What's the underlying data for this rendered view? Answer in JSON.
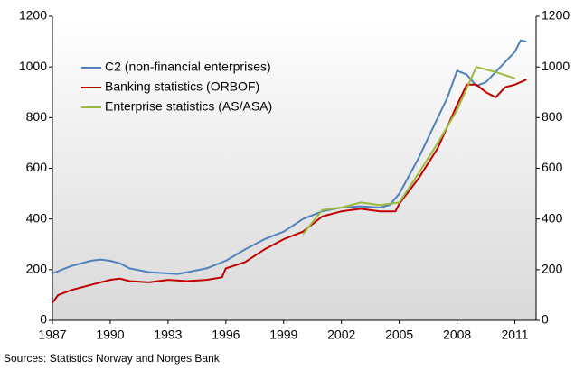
{
  "chart_data": {
    "type": "line",
    "xlim": [
      1987,
      2012.1
    ],
    "xticks": [
      1987,
      1990,
      1993,
      1996,
      1999,
      2002,
      2005,
      2008,
      2011
    ],
    "ylim": [
      0,
      1200
    ],
    "yticks": [
      0,
      200,
      400,
      600,
      800,
      1000,
      1200
    ],
    "y2lim": [
      0,
      1200
    ],
    "y2ticks": [
      0,
      200,
      400,
      600,
      800,
      1000,
      1200
    ],
    "grid": false,
    "legend": "upper left",
    "series": [
      {
        "name": "C2 (non-financial enterprises)",
        "color": "#4f81bd",
        "x": [
          1987,
          1988,
          1989,
          1989.5,
          1990,
          1990.5,
          1991,
          1992,
          1993,
          1993.5,
          1994,
          1995,
          1996,
          1997,
          1998,
          1999,
          2000,
          2001,
          2002,
          2003,
          2004,
          2004.5,
          2005,
          2006,
          2007,
          2007.5,
          2008,
          2008.5,
          2009,
          2009.5,
          2010,
          2010.5,
          2011,
          2011.3,
          2011.6
        ],
        "values": [
          185,
          215,
          235,
          240,
          235,
          225,
          205,
          190,
          185,
          183,
          190,
          205,
          235,
          280,
          320,
          350,
          400,
          430,
          445,
          450,
          445,
          455,
          500,
          640,
          800,
          880,
          985,
          970,
          925,
          940,
          980,
          1020,
          1060,
          1105,
          1100
        ]
      },
      {
        "name": "Banking statistics (ORBOF)",
        "color": "#c00000",
        "x": [
          1987,
          1987.3,
          1988,
          1989,
          1990,
          1990.5,
          1991,
          1992,
          1993,
          1994,
          1995,
          1995.8,
          1996,
          1997,
          1998,
          1999,
          2000,
          2001,
          2002,
          2003,
          2004,
          2004.8,
          2005,
          2006,
          2007,
          2008,
          2008.5,
          2009,
          2009.5,
          2010,
          2010.5,
          2011,
          2011.6
        ],
        "values": [
          70,
          100,
          120,
          140,
          160,
          165,
          155,
          150,
          160,
          155,
          160,
          170,
          205,
          230,
          280,
          320,
          350,
          410,
          430,
          440,
          430,
          430,
          460,
          560,
          680,
          850,
          930,
          930,
          900,
          880,
          920,
          930,
          950
        ]
      },
      {
        "name": "Enterprise statistics (AS/ASA)",
        "color": "#9bbb3b",
        "x": [
          2000,
          2001,
          2002,
          2003,
          2004,
          2005,
          2006,
          2007,
          2008,
          2009,
          2010,
          2011
        ],
        "values": [
          340,
          435,
          445,
          465,
          455,
          465,
          580,
          700,
          830,
          1000,
          980,
          955
        ]
      }
    ],
    "source": "Sources: Statistics Norway and Norges Bank"
  }
}
